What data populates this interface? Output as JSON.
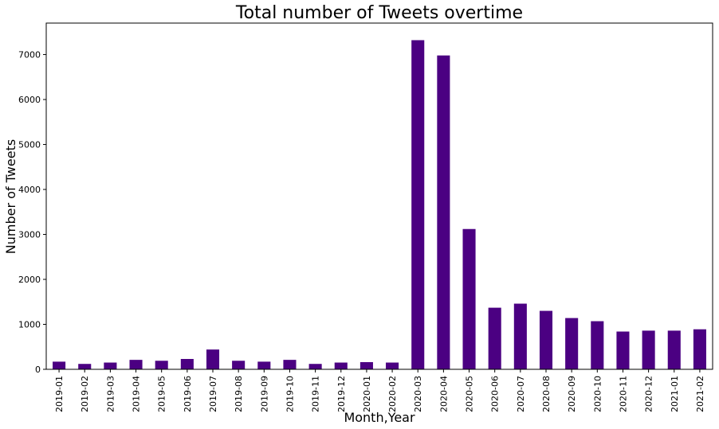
{
  "chart_data": {
    "type": "bar",
    "title": "Total number of Tweets overtime",
    "xlabel": "Month,Year",
    "ylabel": "Number of Tweets",
    "categories": [
      "2019-01",
      "2019-02",
      "2019-03",
      "2019-04",
      "2019-05",
      "2019-06",
      "2019-07",
      "2019-08",
      "2019-09",
      "2019-10",
      "2019-11",
      "2019-12",
      "2020-01",
      "2020-02",
      "2020-03",
      "2020-04",
      "2020-05",
      "2020-06",
      "2020-07",
      "2020-08",
      "2020-09",
      "2020-10",
      "2020-11",
      "2020-12",
      "2021-01",
      "2021-02"
    ],
    "values": [
      170,
      120,
      150,
      210,
      190,
      230,
      440,
      190,
      170,
      210,
      120,
      150,
      160,
      150,
      7320,
      6980,
      3120,
      1370,
      1460,
      1300,
      1140,
      1070,
      840,
      860,
      860,
      890
    ],
    "ylim": [
      0,
      7700
    ],
    "yticks": [
      0,
      1000,
      2000,
      3000,
      4000,
      5000,
      6000,
      7000
    ],
    "bar_color": "#4b0082",
    "grid": false,
    "legend": "none"
  }
}
